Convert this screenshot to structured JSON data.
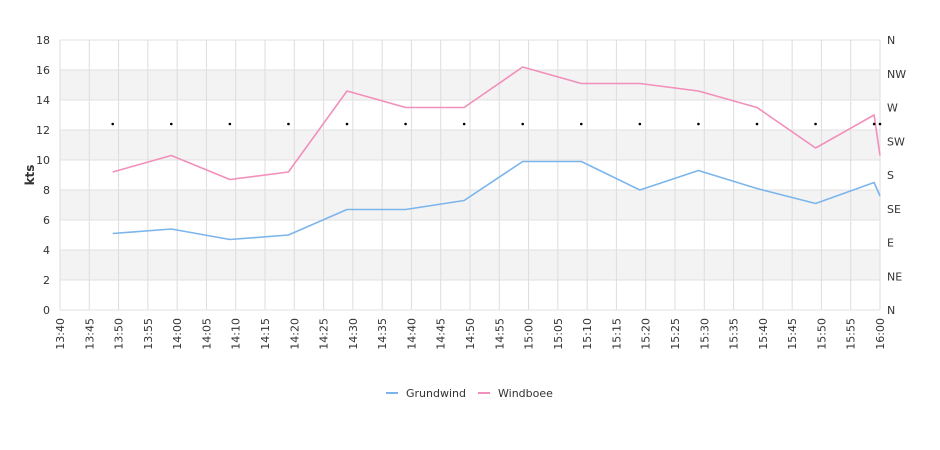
{
  "chart_data": {
    "type": "line",
    "ylabel": "kts",
    "ylim": [
      0,
      18
    ],
    "yticks": [
      "0",
      "2",
      "4",
      "6",
      "8",
      "10",
      "12",
      "14",
      "16",
      "18"
    ],
    "y2ticks": [
      "N",
      "NE",
      "E",
      "SE",
      "S",
      "SW",
      "W",
      "NW",
      "N"
    ],
    "xticks": [
      "13:40",
      "13:45",
      "13:50",
      "13:55",
      "14:00",
      "14:05",
      "14:10",
      "14:15",
      "14:20",
      "14:25",
      "14:30",
      "14:35",
      "14:40",
      "14:45",
      "14:50",
      "14:55",
      "15:00",
      "15:05",
      "15:10",
      "15:15",
      "15:20",
      "15:25",
      "15:30",
      "15:35",
      "15:40",
      "15:45",
      "15:50",
      "15:55",
      "16:00"
    ],
    "xrange_minutes": [
      820,
      960
    ],
    "legend_position": "bottom",
    "direction_marker_y": 12.4,
    "direction_marker_x": [
      "13:49",
      "13:59",
      "14:09",
      "14:19",
      "14:29",
      "14:39",
      "14:49",
      "14:59",
      "15:09",
      "15:19",
      "15:29",
      "15:39",
      "15:49",
      "15:59",
      "16:00"
    ],
    "series": [
      {
        "name": "Grundwind",
        "color": "#7cb5ec",
        "x": [
          "13:49",
          "13:59",
          "14:09",
          "14:19",
          "14:29",
          "14:39",
          "14:49",
          "14:59",
          "15:09",
          "15:19",
          "15:29",
          "15:39",
          "15:49",
          "15:59",
          "16:00"
        ],
        "values": [
          5.1,
          5.4,
          4.7,
          5.0,
          6.7,
          6.7,
          7.3,
          9.9,
          9.9,
          8.0,
          9.3,
          8.1,
          7.1,
          8.5,
          7.6
        ]
      },
      {
        "name": "Windboee",
        "color": "#f28fbb",
        "x": [
          "13:49",
          "13:59",
          "14:09",
          "14:19",
          "14:29",
          "14:39",
          "14:49",
          "14:59",
          "15:09",
          "15:19",
          "15:29",
          "15:39",
          "15:49",
          "15:59",
          "16:00"
        ],
        "values": [
          9.2,
          10.3,
          8.7,
          9.2,
          14.6,
          13.5,
          13.5,
          16.2,
          15.1,
          15.1,
          14.6,
          13.5,
          10.8,
          13.0,
          10.3
        ]
      }
    ]
  }
}
